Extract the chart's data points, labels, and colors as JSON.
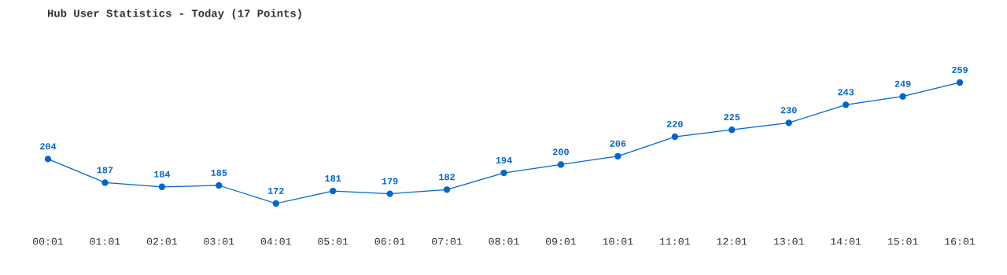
{
  "chart_data": {
    "type": "line",
    "title": "Hub User Statistics - Today (17 Points)",
    "categories": [
      "00:01",
      "01:01",
      "02:01",
      "03:01",
      "04:01",
      "05:01",
      "06:01",
      "07:01",
      "08:01",
      "09:01",
      "10:01",
      "11:01",
      "12:01",
      "13:01",
      "14:01",
      "15:01",
      "16:01"
    ],
    "series": [
      {
        "color": "#0066cc",
        "values": [
          204,
          187,
          184,
          185,
          172,
          181,
          179,
          182,
          194,
          200,
          206,
          220,
          225,
          230,
          243,
          249,
          259
        ]
      }
    ],
    "data_labels": true,
    "marker": "circle",
    "line_style": "solid",
    "grid": false,
    "legend": false,
    "tick_labels": "x"
  }
}
